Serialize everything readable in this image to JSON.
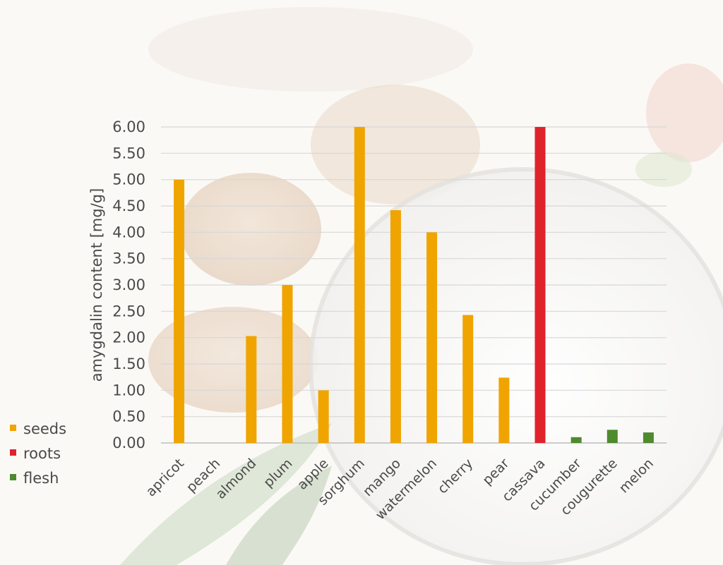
{
  "colors": {
    "seeds": "#f0a400",
    "roots": "#e0232b",
    "flesh": "#4e8a2e",
    "grid": "#d7d7d7"
  },
  "chart_data": {
    "type": "bar",
    "ylabel": "amygdalin content [mg/g]",
    "ylim": [
      0,
      6
    ],
    "yticks": [
      "0.00",
      "0.50",
      "1.00",
      "1.50",
      "2.00",
      "2.50",
      "3.00",
      "3.50",
      "4.00",
      "4.50",
      "5.00",
      "5.50",
      "6.00"
    ],
    "grid": true,
    "legend_position": "bottom-left",
    "categories": [
      "apricot",
      "peach",
      "almond",
      "plum",
      "apple",
      "sorghum",
      "mango",
      "watermelon",
      "cherry",
      "pear",
      "cassava",
      "cucumber",
      "cougurette",
      "melon"
    ],
    "values": [
      5.0,
      0.0,
      2.03,
      3.0,
      1.0,
      6.0,
      4.42,
      4.0,
      2.43,
      1.24,
      6.0,
      0.11,
      0.25,
      0.2
    ],
    "groups": [
      "seeds",
      "seeds",
      "seeds",
      "seeds",
      "seeds",
      "seeds",
      "seeds",
      "seeds",
      "seeds",
      "seeds",
      "roots",
      "flesh",
      "flesh",
      "flesh"
    ],
    "legend": [
      {
        "key": "seeds",
        "label": "seeds"
      },
      {
        "key": "roots",
        "label": "roots"
      },
      {
        "key": "flesh",
        "label": "flesh"
      }
    ]
  }
}
